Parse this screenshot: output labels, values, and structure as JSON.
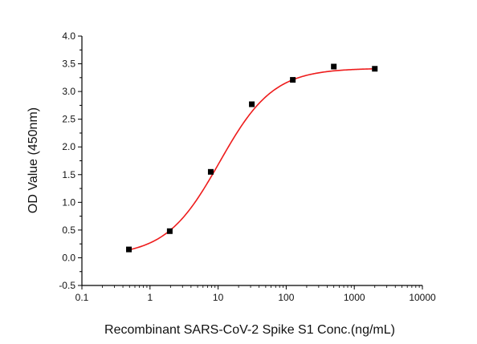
{
  "chart_data": {
    "type": "scatter",
    "xlabel": "Recombinant SARS-CoV-2 Spike S1 Conc.(ng/mL)",
    "ylabel": "OD Value (450nm)",
    "xscale": "log",
    "xlim": [
      0.1,
      10000
    ],
    "ylim": [
      -0.5,
      4.0
    ],
    "x_ticks": [
      "0.1",
      "1",
      "10",
      "100",
      "1000",
      "10000"
    ],
    "y_ticks": [
      "-0.5",
      "0.0",
      "0.5",
      "1.0",
      "1.5",
      "2.0",
      "2.5",
      "3.0",
      "3.5",
      "4.0"
    ],
    "grid": false,
    "series": [
      {
        "x": [
          0.49,
          1.95,
          7.8,
          31.25,
          125,
          500,
          2000
        ],
        "y": [
          0.15,
          0.48,
          1.55,
          2.77,
          3.21,
          3.45,
          3.41
        ],
        "color": "#000000",
        "marker": "square"
      }
    ],
    "fit_curve": {
      "model": "four-parameter logistic",
      "bottom": 0.03,
      "top": 3.42,
      "ec50": 10.5,
      "hill": 1.1,
      "color": "#ee1c1c",
      "x_range": [
        0.49,
        2000
      ]
    }
  }
}
